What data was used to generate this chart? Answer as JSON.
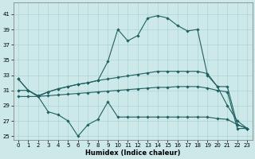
{
  "xlabel": "Humidex (Indice chaleur)",
  "xlim": [
    -0.5,
    23.5
  ],
  "ylim": [
    24.5,
    42.5
  ],
  "yticks": [
    25,
    27,
    29,
    31,
    33,
    35,
    37,
    39,
    41
  ],
  "xticks": [
    0,
    1,
    2,
    3,
    4,
    5,
    6,
    7,
    8,
    9,
    10,
    11,
    12,
    13,
    14,
    15,
    16,
    17,
    18,
    19,
    20,
    21,
    22,
    23
  ],
  "bg_color": "#cce8e8",
  "grid_color": "#aad4d4",
  "line_color": "#206060",
  "line1_y": [
    32.5,
    31.0,
    30.2,
    30.8,
    31.2,
    31.5,
    31.8,
    32.0,
    32.3,
    34.8,
    39.0,
    37.5,
    38.2,
    40.5,
    40.8,
    40.5,
    39.5,
    38.8,
    39.0,
    33.0,
    31.5,
    29.0,
    27.0,
    26.0
  ],
  "line2_y": [
    31.0,
    31.0,
    30.3,
    30.8,
    31.2,
    31.5,
    31.8,
    32.0,
    32.3,
    32.5,
    32.7,
    32.9,
    33.1,
    33.3,
    33.5,
    33.5,
    33.5,
    33.5,
    33.5,
    33.2,
    31.5,
    31.5,
    26.5,
    26.0
  ],
  "line3_y": [
    30.2,
    30.2,
    30.2,
    30.3,
    30.4,
    30.5,
    30.6,
    30.7,
    30.8,
    30.9,
    31.0,
    31.1,
    31.2,
    31.3,
    31.4,
    31.4,
    31.5,
    31.5,
    31.5,
    31.3,
    31.0,
    30.8,
    26.0,
    26.0
  ],
  "line4_y": [
    32.5,
    31.0,
    30.2,
    28.2,
    27.8,
    27.0,
    25.0,
    26.5,
    27.2,
    29.5,
    27.5,
    27.5,
    27.5,
    27.5,
    27.5,
    27.5,
    27.5,
    27.5,
    27.5,
    27.5,
    27.3,
    27.2,
    26.5,
    26.0
  ]
}
